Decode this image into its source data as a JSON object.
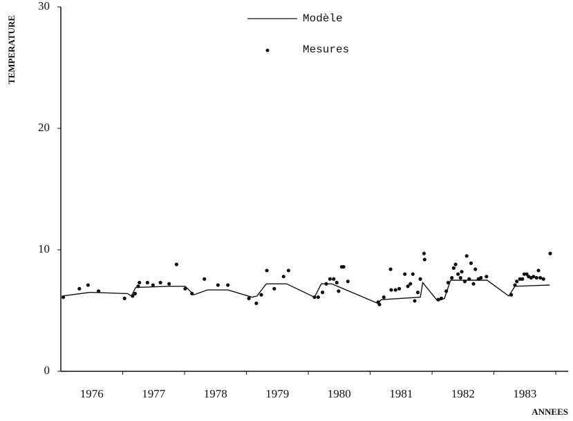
{
  "chart_data": {
    "type": "line",
    "x_label": "ANNEES",
    "y_label": "TEMPERATURE",
    "xlim": [
      1976,
      1984.2
    ],
    "ylim": [
      0,
      30
    ],
    "yticks": [
      0,
      10,
      20,
      30
    ],
    "xticks": [
      {
        "value": 1976.5,
        "label": "1976"
      },
      {
        "value": 1977.5,
        "label": "1977"
      },
      {
        "value": 1978.5,
        "label": "1978"
      },
      {
        "value": 1979.5,
        "label": "1979"
      },
      {
        "value": 1980.5,
        "label": "1980"
      },
      {
        "value": 1981.5,
        "label": "1981"
      },
      {
        "value": 1982.5,
        "label": "1982"
      },
      {
        "value": 1983.5,
        "label": "1983"
      }
    ],
    "xminorticks": [
      1977,
      1978,
      1979,
      1980,
      1981,
      1982,
      1983,
      1984
    ],
    "grid": false,
    "series": [
      {
        "name": "Modèle",
        "type": "line",
        "color": "#111",
        "x": [
          1976.02,
          1976.47,
          1977.08,
          1977.14,
          1977.21,
          1977.75,
          1978.01,
          1978.15,
          1978.37,
          1978.7,
          1979.09,
          1979.17,
          1979.32,
          1979.65,
          1980.1,
          1980.21,
          1980.38,
          1981.12,
          1981.18,
          1981.81,
          1981.85,
          1982.09,
          1982.2,
          1982.3,
          1982.89,
          1983.24,
          1983.34,
          1983.9
        ],
        "values": [
          6.2,
          6.5,
          6.4,
          6.2,
          6.9,
          7.0,
          7.0,
          6.3,
          6.7,
          6.7,
          6.1,
          6.2,
          7.2,
          7.2,
          6.1,
          7.2,
          7.2,
          5.6,
          5.9,
          6.1,
          7.3,
          5.8,
          6.0,
          7.5,
          7.5,
          6.2,
          7.0,
          7.1
        ]
      },
      {
        "name": "Mesures",
        "type": "scatter",
        "color": "#111",
        "x": [
          1976.04,
          1976.3,
          1976.44,
          1976.61,
          1977.03,
          1977.16,
          1977.2,
          1977.25,
          1977.27,
          1977.4,
          1977.49,
          1977.61,
          1977.75,
          1977.87,
          1978.01,
          1978.12,
          1978.32,
          1978.54,
          1978.7,
          1979.04,
          1979.16,
          1979.24,
          1979.33,
          1979.45,
          1979.6,
          1979.68,
          1980.1,
          1980.16,
          1980.23,
          1980.29,
          1980.35,
          1980.41,
          1980.46,
          1980.49,
          1980.54,
          1980.57,
          1980.64,
          1981.13,
          1981.15,
          1981.22,
          1981.33,
          1981.34,
          1981.41,
          1981.47,
          1981.56,
          1981.61,
          1981.65,
          1981.69,
          1981.72,
          1981.77,
          1981.81,
          1981.87,
          1981.88,
          1982.1,
          1982.15,
          1982.23,
          1982.26,
          1982.32,
          1982.35,
          1982.38,
          1982.42,
          1982.46,
          1982.48,
          1982.53,
          1982.56,
          1982.6,
          1982.63,
          1982.67,
          1982.7,
          1982.75,
          1982.79,
          1982.88,
          1983.28,
          1983.34,
          1983.37,
          1983.42,
          1983.46,
          1983.49,
          1983.53,
          1983.56,
          1983.6,
          1983.64,
          1983.69,
          1983.72,
          1983.75,
          1983.8,
          1983.91
        ],
        "values": [
          6.1,
          6.8,
          7.1,
          6.6,
          6.0,
          6.2,
          6.4,
          7.0,
          7.3,
          7.3,
          7.1,
          7.3,
          7.2,
          8.8,
          6.8,
          6.4,
          7.6,
          7.1,
          7.1,
          6.0,
          5.6,
          6.3,
          8.3,
          6.8,
          7.8,
          8.3,
          6.1,
          6.1,
          6.5,
          7.2,
          7.6,
          7.6,
          7.3,
          6.6,
          8.6,
          8.6,
          7.4,
          5.7,
          5.5,
          6.1,
          8.4,
          6.7,
          6.7,
          6.8,
          8.0,
          7.0,
          7.2,
          8.0,
          5.8,
          6.5,
          7.6,
          9.7,
          9.2,
          5.9,
          6.0,
          6.6,
          7.3,
          7.7,
          8.5,
          8.8,
          8.0,
          7.7,
          8.2,
          7.4,
          9.5,
          7.6,
          8.9,
          7.2,
          8.4,
          7.6,
          7.7,
          7.8,
          6.3,
          7.1,
          7.4,
          7.6,
          7.6,
          8.0,
          8.0,
          7.8,
          7.7,
          7.8,
          7.7,
          8.3,
          7.7,
          7.6,
          9.7
        ]
      }
    ]
  }
}
